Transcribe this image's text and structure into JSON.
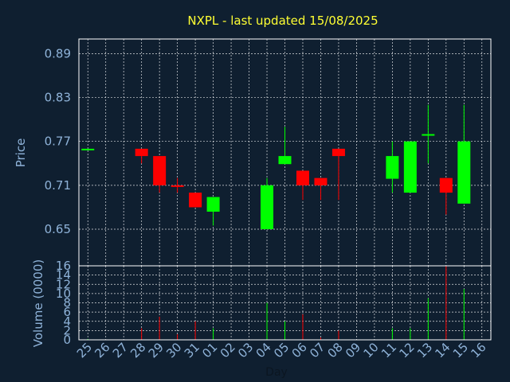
{
  "chart_data": {
    "type": "candlestick",
    "title": "NXPL - last updated 15/08/2025",
    "price_panel": {
      "ylabel": "Price",
      "yticks": [
        0.65,
        0.71,
        0.77,
        0.83,
        0.89
      ],
      "ylim": [
        0.6,
        0.91
      ]
    },
    "volume_panel": {
      "ylabel": "Volume (0000)",
      "yticks": [
        0,
        2,
        4,
        6,
        8,
        10,
        12,
        14,
        16
      ],
      "ylim": [
        0,
        16
      ]
    },
    "xlabel": "Day",
    "days": [
      "25",
      "26",
      "27",
      "28",
      "29",
      "30",
      "31",
      "01",
      "02",
      "03",
      "04",
      "05",
      "06",
      "07",
      "08",
      "09",
      "10",
      "11",
      "12",
      "13",
      "14",
      "15",
      "16"
    ],
    "colors": {
      "up": "#00ff00",
      "down": "#ff0000",
      "background": "#0f1f30",
      "title": "#ffff33",
      "axis_text": "#8fb3d9"
    },
    "candles": [
      {
        "day": "25",
        "open": 0.76,
        "high": 0.76,
        "low": 0.76,
        "close": 0.76,
        "volume": 0.2
      },
      {
        "day": "28",
        "open": 0.76,
        "high": 0.76,
        "low": 0.74,
        "close": 0.75,
        "volume": 2.5
      },
      {
        "day": "29",
        "open": 0.75,
        "high": 0.75,
        "low": 0.7,
        "close": 0.71,
        "volume": 5
      },
      {
        "day": "30",
        "open": 0.71,
        "high": 0.72,
        "low": 0.7,
        "close": 0.708,
        "volume": 1.2
      },
      {
        "day": "31",
        "open": 0.7,
        "high": 0.7,
        "low": 0.68,
        "close": 0.68,
        "volume": 4
      },
      {
        "day": "01",
        "open": 0.674,
        "high": 0.694,
        "low": 0.655,
        "close": 0.694,
        "volume": 2.5
      },
      {
        "day": "04",
        "open": 0.65,
        "high": 0.72,
        "low": 0.65,
        "close": 0.71,
        "volume": 8
      },
      {
        "day": "05",
        "open": 0.739,
        "high": 0.79,
        "low": 0.739,
        "close": 0.75,
        "volume": 4
      },
      {
        "day": "06",
        "open": 0.73,
        "high": 0.73,
        "low": 0.69,
        "close": 0.71,
        "volume": 5.5
      },
      {
        "day": "07",
        "open": 0.72,
        "high": 0.72,
        "low": 0.69,
        "close": 0.71,
        "volume": 0.5
      },
      {
        "day": "08",
        "open": 0.76,
        "high": 0.76,
        "low": 0.69,
        "close": 0.75,
        "volume": 2
      },
      {
        "day": "11",
        "open": 0.719,
        "high": 0.77,
        "low": 0.7,
        "close": 0.75,
        "volume": 2.5
      },
      {
        "day": "12",
        "open": 0.7,
        "high": 0.77,
        "low": 0.7,
        "close": 0.77,
        "volume": 2.5
      },
      {
        "day": "13",
        "open": 0.78,
        "high": 0.82,
        "low": 0.74,
        "close": 0.78,
        "volume": 9
      },
      {
        "day": "14",
        "open": 0.72,
        "high": 0.72,
        "low": 0.67,
        "close": 0.7,
        "volume": 16
      },
      {
        "day": "15",
        "open": 0.685,
        "high": 0.82,
        "low": 0.685,
        "close": 0.77,
        "volume": 11
      }
    ]
  }
}
